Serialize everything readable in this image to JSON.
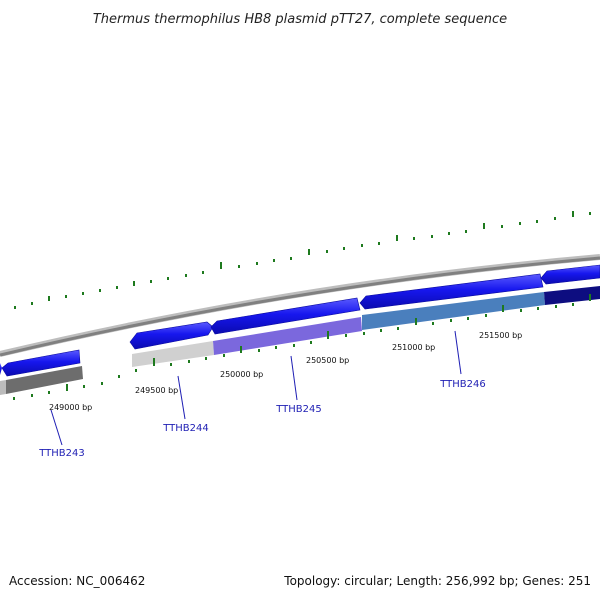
{
  "title": "Thermus thermophilus HB8 plasmid pTT27, complete sequence",
  "footer": {
    "accession": "Accession: NC_006462",
    "summary": "Topology: circular; Length: 256,992 bp; Genes: 251"
  },
  "colors": {
    "backbone": "#8c8c8c",
    "cds_forward": "#1a1aee",
    "ticks": "#1e7a1e",
    "gene_label": "#1f1fb4"
  },
  "scale_labels": [
    "249000 bp",
    "249500 bp",
    "250000 bp",
    "250500 bp",
    "251000 bp",
    "251500 bp"
  ],
  "gene_labels": [
    "TTHB243",
    "TTHB244",
    "TTHB245",
    "TTHB246"
  ]
}
